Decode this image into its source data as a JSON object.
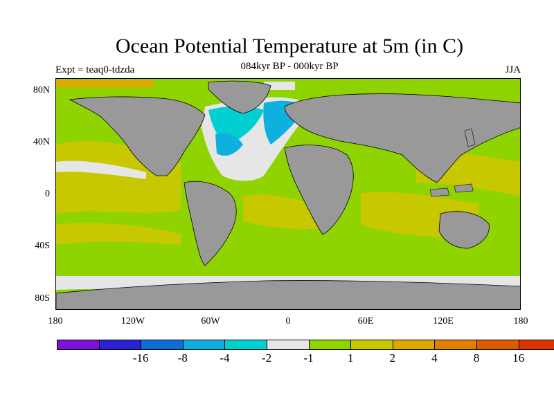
{
  "title": "Ocean Potential Temperature at 5m (in C)",
  "subtitle": "084kyr BP - 000kyr BP",
  "experiment": "Expt = teaq0-tdzda",
  "season": "JJA",
  "colors": {
    "land": "#999999",
    "ocean_default": "#8fd400",
    "background": "#ffffff"
  },
  "lat_ticks": [
    "80N",
    "40N",
    "0",
    "40S",
    "80S"
  ],
  "lon_ticks": [
    "180",
    "120W",
    "60W",
    "0",
    "60E",
    "120E",
    "180"
  ],
  "colorbar": {
    "colors": [
      "#7a12d8",
      "#2a23d2",
      "#0e6ed8",
      "#0eb0e0",
      "#00d0d0",
      "#e6e6e6",
      "#8fd400",
      "#c8c800",
      "#dfa800",
      "#e08000",
      "#dd5a00",
      "#dd3300"
    ],
    "labels": [
      "-16",
      "-8",
      "-4",
      "-2",
      "-1",
      "1",
      "2",
      "4",
      "8",
      "16"
    ]
  }
}
